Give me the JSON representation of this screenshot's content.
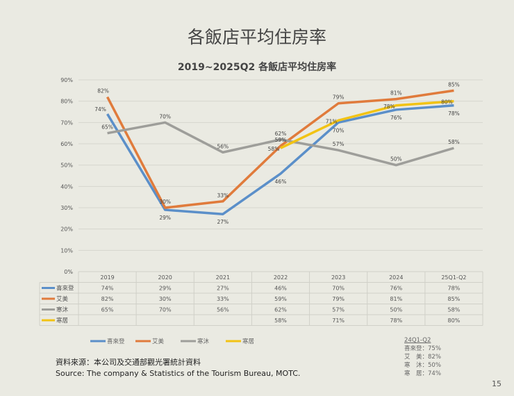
{
  "page": {
    "title": "各飯店平均住房率",
    "page_number": "15"
  },
  "source": {
    "zh": "資料來源：本公司及交通部觀光署統計資料",
    "en": "Source: The company & Statistics of the Tourism Bureau, MOTC."
  },
  "side_note": {
    "title": "24Q1-Q2",
    "lines": [
      "喜來登：75%",
      "艾　美：82%",
      "寒　沐：50%",
      "寒　居：74%"
    ]
  },
  "chart_data": {
    "type": "line",
    "title": "2019~2025Q2 各飯店平均住房率",
    "categories": [
      "2019",
      "2020",
      "2021",
      "2022",
      "2023",
      "2024",
      "25Q1-Q2"
    ],
    "ylim": [
      0,
      90
    ],
    "yticks": [
      "0%",
      "10%",
      "20%",
      "30%",
      "40%",
      "50%",
      "60%",
      "70%",
      "80%",
      "90%"
    ],
    "grid": true,
    "legend": "bottom",
    "data_table": true,
    "series": [
      {
        "name": "喜來登",
        "color": "#5b8fc9",
        "values": [
          74,
          29,
          27,
          46,
          70,
          76,
          78
        ]
      },
      {
        "name": "艾美",
        "color": "#e07b3c",
        "values": [
          82,
          30,
          33,
          59,
          79,
          81,
          85
        ]
      },
      {
        "name": "寒沐",
        "color": "#9e9e9a",
        "values": [
          65,
          70,
          56,
          62,
          57,
          50,
          58
        ]
      },
      {
        "name": "寒居",
        "color": "#f2c314",
        "values": [
          null,
          null,
          null,
          58,
          71,
          78,
          80
        ]
      }
    ]
  }
}
